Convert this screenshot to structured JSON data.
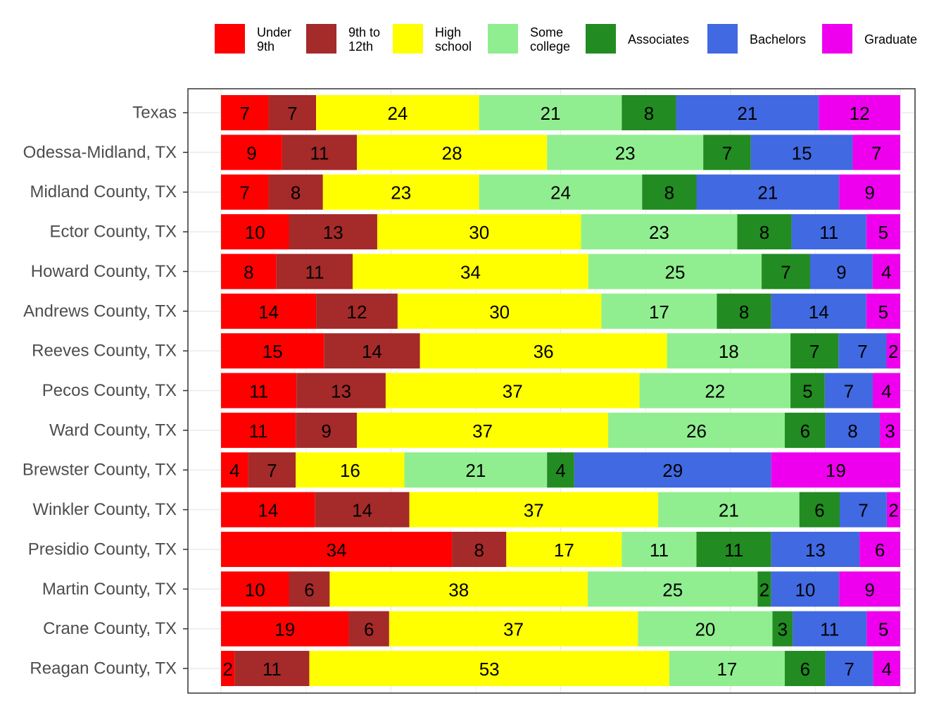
{
  "chart_data": {
    "type": "bar",
    "orientation": "horizontal",
    "stacked": true,
    "percent_scale": true,
    "title": "",
    "xlabel": "",
    "ylabel": "",
    "grid": true,
    "legend_position": "top",
    "categories": [
      "Texas",
      "Odessa-Midland, TX",
      "Midland County, TX",
      "Ector County, TX",
      "Howard County, TX",
      "Andrews County, TX",
      "Reeves County, TX",
      "Pecos County, TX",
      "Ward County, TX",
      "Brewster County, TX",
      "Winkler County, TX",
      "Presidio County, TX",
      "Martin County, TX",
      "Crane County, TX",
      "Reagan County, TX"
    ],
    "series": [
      {
        "name": "Under 9th",
        "legend_lines": [
          "Under",
          "9th"
        ],
        "color": "#FF0000",
        "values": [
          7,
          9,
          7,
          10,
          8,
          14,
          15,
          11,
          11,
          4,
          14,
          34,
          10,
          19,
          2
        ]
      },
      {
        "name": "9th to 12th",
        "legend_lines": [
          "9th to",
          "12th"
        ],
        "color": "#A52A2A",
        "values": [
          7,
          11,
          8,
          13,
          11,
          12,
          14,
          13,
          9,
          7,
          14,
          8,
          6,
          6,
          11
        ]
      },
      {
        "name": "High school",
        "legend_lines": [
          "High",
          "school"
        ],
        "color": "#FFFF00",
        "values": [
          24,
          28,
          23,
          30,
          34,
          30,
          36,
          37,
          37,
          16,
          37,
          17,
          38,
          37,
          53
        ]
      },
      {
        "name": "Some college",
        "legend_lines": [
          "Some",
          "college"
        ],
        "color": "#90EE90",
        "values": [
          21,
          23,
          24,
          23,
          25,
          17,
          18,
          22,
          26,
          21,
          21,
          11,
          25,
          20,
          17
        ]
      },
      {
        "name": "Associates",
        "legend_lines": [
          "Associates"
        ],
        "color": "#228B22",
        "values": [
          8,
          7,
          8,
          8,
          7,
          8,
          7,
          5,
          6,
          4,
          6,
          11,
          2,
          3,
          6
        ]
      },
      {
        "name": "Bachelors",
        "legend_lines": [
          "Bachelors"
        ],
        "color": "#4169E1",
        "values": [
          21,
          15,
          21,
          11,
          9,
          14,
          7,
          7,
          8,
          29,
          7,
          13,
          10,
          11,
          7
        ]
      },
      {
        "name": "Graduate",
        "legend_lines": [
          "Graduate"
        ],
        "color": "#EE00EE",
        "values": [
          12,
          7,
          9,
          5,
          4,
          5,
          2,
          4,
          3,
          19,
          2,
          6,
          9,
          5,
          4
        ]
      }
    ]
  }
}
